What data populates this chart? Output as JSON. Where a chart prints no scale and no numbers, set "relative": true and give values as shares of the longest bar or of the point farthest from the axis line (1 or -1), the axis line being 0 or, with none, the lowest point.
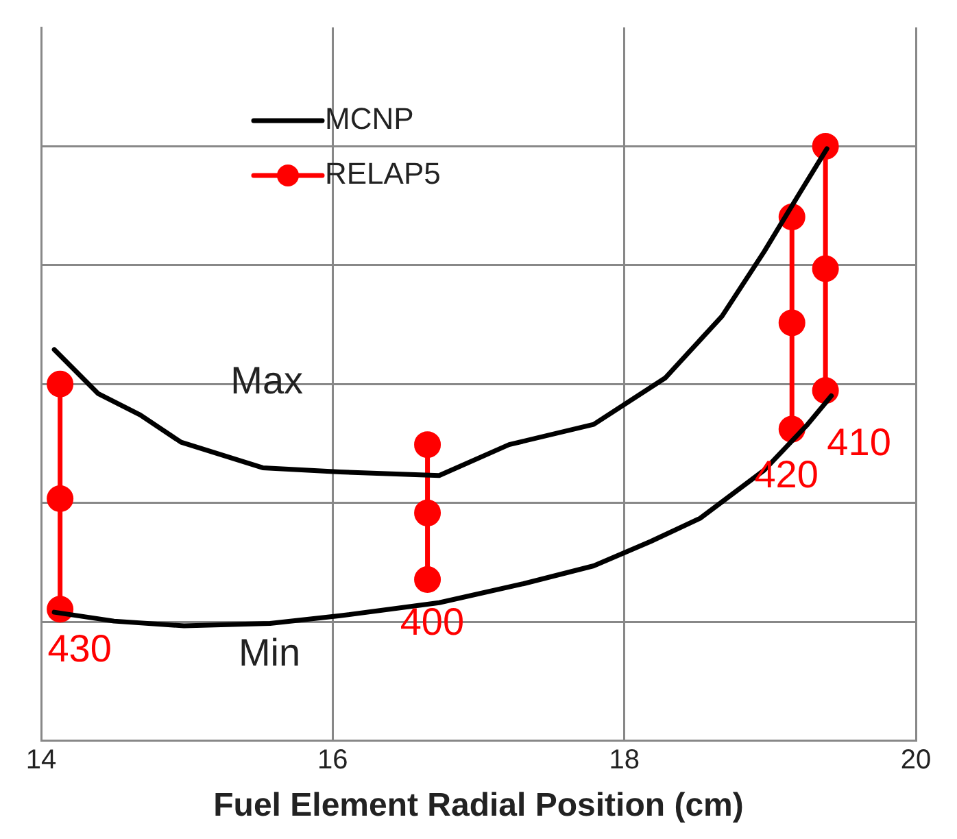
{
  "chart_data": {
    "type": "line",
    "xlabel": "Fuel Element Radial Position (cm)",
    "xlim": [
      14,
      20
    ],
    "xticks": [
      14,
      16,
      18,
      20
    ],
    "relative": true,
    "grid": true,
    "legend": "top left",
    "series": [
      {
        "name": "MCNP",
        "color": "#000000",
        "marker": "none",
        "x": [
          14.09,
          14.39,
          14.68,
          14.96,
          15.52,
          16.05,
          16.73,
          17.21,
          17.79,
          18.28,
          18.67,
          18.96,
          19.2,
          19.39
        ],
        "values": [
          0.658,
          0.584,
          0.548,
          0.502,
          0.459,
          0.452,
          0.446,
          0.498,
          0.532,
          0.61,
          0.714,
          0.823,
          0.92,
          0.996
        ]
      },
      {
        "color": "#000000",
        "marker": "none",
        "x": [
          14.09,
          14.5,
          14.98,
          15.57,
          16.05,
          16.73,
          17.31,
          17.79,
          18.18,
          18.52,
          18.96,
          19.25,
          19.42
        ],
        "values": [
          0.216,
          0.201,
          0.193,
          0.197,
          0.21,
          0.232,
          0.264,
          0.294,
          0.335,
          0.374,
          0.455,
          0.53,
          0.58
        ]
      },
      {
        "name": "RELAP5",
        "color": "#ff0000",
        "marker": "circle",
        "x": [
          14.13,
          14.13,
          14.13,
          15.4,
          16.65,
          16.65,
          16.65,
          17.9,
          19.15,
          19.15,
          19.15,
          19.27,
          19.38,
          19.38,
          19.38
        ],
        "values": [
          0.6,
          0.407,
          0.221,
          null,
          0.498,
          0.383,
          0.271,
          null,
          0.881,
          0.703,
          0.524,
          null,
          1,
          0.794,
          0.589
        ]
      }
    ],
    "annotations": [
      "Max",
      "Min",
      "430",
      "400",
      "410",
      "420"
    ]
  }
}
